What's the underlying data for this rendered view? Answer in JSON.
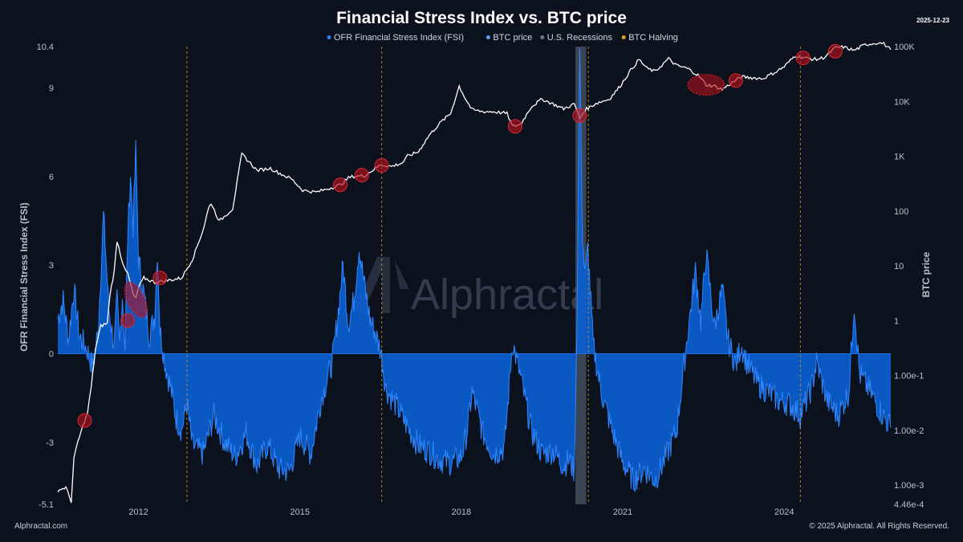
{
  "chart_data": {
    "type": "area+line",
    "title": "Financial Stress Index vs. BTC price",
    "date_label": "2025-12-23",
    "legend": [
      {
        "label": "OFR Financial Stress Index (FSI)",
        "color": "#2f7ff5"
      },
      {
        "label": "BTC price",
        "color": "#5a9dff"
      },
      {
        "label": "U.S. Recessions",
        "color": "#6d7687"
      },
      {
        "label": "BTC Halving",
        "color": "#d9a520"
      }
    ],
    "ylabel_left": "OFR Financial Stress Index (FSI)",
    "ylabel_right": "BTC price",
    "left_axis": {
      "min": -5.1,
      "max": 10.4,
      "ticks": [
        "10.4",
        "9",
        "6",
        "3",
        "0",
        "-3",
        "-5.1"
      ],
      "tick_values": [
        10.4,
        9,
        6,
        3,
        0,
        -3,
        -5.1
      ]
    },
    "right_axis": {
      "scale": "log",
      "min": 0.000446,
      "max": 100000,
      "ticks": [
        "100K",
        "10K",
        "1K",
        "100",
        "10",
        "1",
        "1.00e-1",
        "1.00e-2",
        "1.00e-3",
        "4.46e-4"
      ],
      "tick_values": [
        100000,
        10000,
        1000,
        100,
        10,
        1,
        0.1,
        0.01,
        0.001,
        0.000446
      ]
    },
    "x_axis": {
      "min": 2010.5,
      "max": 2025.98,
      "ticks": [
        "2012",
        "2015",
        "2018",
        "2021",
        "2024"
      ],
      "tick_values": [
        2012,
        2015,
        2018,
        2021,
        2024
      ]
    },
    "halvings": [
      2012.9,
      2016.52,
      2020.36,
      2024.3
    ],
    "recessions": [
      {
        "start": 2020.12,
        "end": 2020.32
      }
    ],
    "series": [
      {
        "name": "OFR Financial Stress Index (FSI)",
        "x": [
          2010.5,
          2010.6,
          2010.7,
          2010.8,
          2010.9,
          2011.0,
          2011.05,
          2011.15,
          2011.25,
          2011.35,
          2011.45,
          2011.55,
          2011.6,
          2011.65,
          2011.7,
          2011.75,
          2011.8,
          2011.85,
          2011.9,
          2011.95,
          2012.0,
          2012.1,
          2012.2,
          2012.3,
          2012.35,
          2012.4,
          2012.5,
          2012.6,
          2012.7,
          2012.8,
          2012.9,
          2013.0,
          2013.2,
          2013.4,
          2013.6,
          2013.8,
          2014.0,
          2014.2,
          2014.4,
          2014.6,
          2014.8,
          2015.0,
          2015.2,
          2015.4,
          2015.6,
          2015.7,
          2015.8,
          2015.9,
          2016.0,
          2016.1,
          2016.2,
          2016.3,
          2016.4,
          2016.5,
          2016.6,
          2016.8,
          2017.0,
          2017.2,
          2017.4,
          2017.6,
          2017.8,
          2018.0,
          2018.1,
          2018.2,
          2018.4,
          2018.6,
          2018.8,
          2018.95,
          2019.1,
          2019.3,
          2019.5,
          2019.7,
          2019.9,
          2020.0,
          2020.1,
          2020.15,
          2020.2,
          2020.25,
          2020.3,
          2020.35,
          2020.45,
          2020.6,
          2020.8,
          2021.0,
          2021.2,
          2021.4,
          2021.6,
          2021.8,
          2022.0,
          2022.2,
          2022.35,
          2022.45,
          2022.55,
          2022.7,
          2022.85,
          2022.95,
          2023.1,
          2023.2,
          2023.3,
          2023.5,
          2023.7,
          2023.9,
          2024.1,
          2024.3,
          2024.5,
          2024.6,
          2024.8,
          2025.0,
          2025.2,
          2025.3,
          2025.4,
          2025.6,
          2025.8,
          2025.98
        ],
        "values": [
          1.2,
          1.8,
          0.5,
          2.2,
          0.6,
          0.3,
          0.1,
          -0.5,
          0.8,
          4.7,
          1.5,
          0.2,
          1.8,
          0.3,
          2.0,
          0.2,
          4.0,
          6.1,
          4.3,
          6.9,
          3.2,
          2.0,
          0.6,
          1.3,
          3.5,
          0.8,
          -0.4,
          -1.2,
          -2.2,
          -2.6,
          -1.7,
          -3.1,
          -3.4,
          -2.1,
          -3.0,
          -3.5,
          -2.7,
          -3.8,
          -3.1,
          -3.9,
          -4.0,
          -2.8,
          -3.4,
          -1.5,
          -0.3,
          1.2,
          3.0,
          1.0,
          1.8,
          3.6,
          2.3,
          1.2,
          0.7,
          0.1,
          -1.2,
          -1.8,
          -2.5,
          -3.1,
          -3.3,
          -3.6,
          -3.7,
          -3.5,
          -2.7,
          -1.3,
          -2.7,
          -3.4,
          -3.2,
          0.4,
          -0.8,
          -2.6,
          -3.4,
          -3.3,
          -3.8,
          -3.6,
          -4.0,
          1.5,
          10.4,
          4.0,
          2.6,
          3.6,
          0.3,
          -1.3,
          -2.6,
          -3.7,
          -4.3,
          -3.9,
          -4.3,
          -3.5,
          -2.6,
          0.6,
          2.8,
          1.1,
          3.4,
          0.9,
          2.2,
          0.5,
          -0.4,
          0.3,
          -0.3,
          -1.0,
          -1.3,
          -1.6,
          -1.7,
          -2.1,
          -1.2,
          -0.3,
          -1.6,
          -2.1,
          -1.3,
          1.7,
          -0.7,
          -1.3,
          -2.0,
          -2.5
        ]
      },
      {
        "name": "BTC price",
        "x": [
          2010.5,
          2010.65,
          2010.75,
          2010.8,
          2010.87,
          2011.0,
          2011.05,
          2011.12,
          2011.2,
          2011.3,
          2011.42,
          2011.47,
          2011.55,
          2011.6,
          2011.7,
          2011.8,
          2011.85,
          2011.9,
          2011.95,
          2012.0,
          2012.1,
          2012.3,
          2012.6,
          2012.8,
          2013.0,
          2013.2,
          2013.3,
          2013.35,
          2013.5,
          2013.75,
          2013.92,
          2014.05,
          2014.2,
          2014.45,
          2014.6,
          2014.85,
          2015.05,
          2015.3,
          2015.55,
          2015.75,
          2015.9,
          2016.0,
          2016.2,
          2016.4,
          2016.5,
          2016.7,
          2016.9,
          2017.0,
          2017.2,
          2017.4,
          2017.6,
          2017.8,
          2017.96,
          2018.08,
          2018.2,
          2018.4,
          2018.6,
          2018.85,
          2018.95,
          2019.1,
          2019.3,
          2019.5,
          2019.7,
          2019.9,
          2020.1,
          2020.2,
          2020.3,
          2020.5,
          2020.75,
          2020.95,
          2021.12,
          2021.3,
          2021.45,
          2021.6,
          2021.85,
          2022.0,
          2022.2,
          2022.4,
          2022.55,
          2022.7,
          2022.85,
          2023.0,
          2023.2,
          2023.4,
          2023.6,
          2023.85,
          2024.0,
          2024.2,
          2024.4,
          2024.6,
          2024.75,
          2024.95,
          2025.1,
          2025.3,
          2025.5,
          2025.75,
          2025.85,
          2025.98
        ],
        "values": [
          0.0008,
          0.0009,
          0.0005,
          0.003,
          0.006,
          0.015,
          0.02,
          0.06,
          0.3,
          0.8,
          0.9,
          3,
          8,
          29,
          12,
          7,
          4.8,
          3,
          2.5,
          4,
          6,
          5,
          5.5,
          6,
          13,
          45,
          110,
          140,
          65,
          110,
          1100,
          800,
          550,
          600,
          500,
          380,
          240,
          220,
          260,
          300,
          400,
          430,
          440,
          600,
          700,
          650,
          750,
          1000,
          1200,
          2400,
          4000,
          6000,
          19000,
          11000,
          7000,
          6500,
          6500,
          6000,
          3500,
          3800,
          8000,
          11000,
          9000,
          7300,
          9000,
          5000,
          7000,
          9200,
          11000,
          19000,
          34000,
          58000,
          40000,
          35000,
          60000,
          45000,
          40000,
          30000,
          20000,
          19000,
          16500,
          21000,
          28000,
          27000,
          26000,
          35000,
          43000,
          68000,
          62000,
          58000,
          64000,
          95000,
          98000,
          85000,
          108000,
          118000,
          112000,
          88000
        ]
      }
    ],
    "highlighted_points": [
      {
        "x": 2011.0,
        "y": 0.015
      },
      {
        "x": 2011.8,
        "y": 1.0
      },
      {
        "x": 2012.4,
        "y": 6.0
      },
      {
        "x": 2015.75,
        "y": 300
      },
      {
        "x": 2016.15,
        "y": 450
      },
      {
        "x": 2016.52,
        "y": 680
      },
      {
        "x": 2019.0,
        "y": 3500
      },
      {
        "x": 2020.2,
        "y": 5500
      },
      {
        "x": 2023.1,
        "y": 24000
      },
      {
        "x": 2024.35,
        "y": 62000
      },
      {
        "x": 2024.95,
        "y": 82000
      }
    ],
    "highlighted_ellipses": [
      {
        "x": 2011.95,
        "y": 2.4
      },
      {
        "x": 2022.55,
        "y": 20000
      }
    ]
  },
  "watermark": "Alphractal",
  "footer": {
    "left": "Alphractal.com",
    "right": "© 2025 Alphractal. All Rights Reserved."
  }
}
